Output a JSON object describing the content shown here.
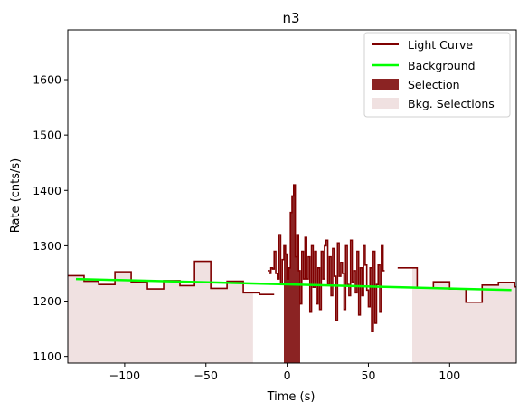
{
  "chart_data": {
    "type": "line",
    "title": "n3",
    "xlabel": "Time (s)",
    "ylabel": "Rate (cnts/s)",
    "xlim": [
      -135,
      141
    ],
    "ylim": [
      1088,
      1690
    ],
    "x_ticks": [
      -100,
      -50,
      0,
      50,
      100
    ],
    "y_ticks": [
      1100,
      1200,
      1300,
      1400,
      1500,
      1600
    ],
    "legend_position": "upper-right",
    "grid": false,
    "colors": {
      "light_curve": "#7f0000",
      "background": "#00ff00",
      "selection": "#8b2323",
      "bkg_selection": "#f0e1e1"
    },
    "legend": {
      "light_curve": "Light Curve",
      "background": "Background",
      "selection": "Selection",
      "bkg_selections": "Bkg. Selections"
    },
    "background_fit": {
      "x": [
        -130,
        138
      ],
      "y": [
        1240,
        1220
      ]
    },
    "selection_interval": [
      -2,
      8
    ],
    "bkg_selection_intervals": [
      [
        -135,
        -21
      ],
      [
        77,
        141
      ]
    ],
    "light_curve_coarse_left": [
      [
        -135,
        1246
      ],
      [
        -125,
        1236
      ],
      [
        -116,
        1230
      ],
      [
        -106,
        1253
      ],
      [
        -96,
        1235
      ],
      [
        -86,
        1222
      ],
      [
        -76,
        1237
      ],
      [
        -66,
        1228
      ],
      [
        -57,
        1272
      ],
      [
        -47,
        1223
      ],
      [
        -37,
        1236
      ],
      [
        -27,
        1215
      ],
      [
        -17,
        1212
      ]
    ],
    "light_curve_coarse_left_end": -8,
    "light_curve_fine_start": -12,
    "light_curve_fine": [
      1255,
      1250,
      1260,
      1258,
      1290,
      1250,
      1240,
      1320,
      1230,
      1275,
      1300,
      1285,
      1240,
      1260,
      1360,
      1390,
      1410,
      1280,
      1320,
      1255,
      1195,
      1290,
      1240,
      1315,
      1240,
      1280,
      1180,
      1300,
      1225,
      1290,
      1195,
      1260,
      1185,
      1290,
      1240,
      1300,
      1310,
      1230,
      1280,
      1210,
      1295,
      1245,
      1165,
      1305,
      1245,
      1270,
      1250,
      1185,
      1300,
      1230,
      1210,
      1310,
      1235,
      1255,
      1215,
      1290,
      1175,
      1260,
      1210,
      1300,
      1265,
      1220,
      1190,
      1260,
      1145,
      1290,
      1160,
      1230,
      1265,
      1180,
      1300,
      1255
    ],
    "light_curve_fine_step": 1.0,
    "light_curve_coarse_right": [
      [
        68,
        1260
      ],
      [
        80,
        1224
      ],
      [
        90,
        1235
      ],
      [
        100,
        1222
      ],
      [
        110,
        1198
      ],
      [
        120,
        1229
      ],
      [
        130,
        1234
      ],
      [
        140,
        1226
      ]
    ],
    "light_curve_coarse_right_end": 141
  }
}
